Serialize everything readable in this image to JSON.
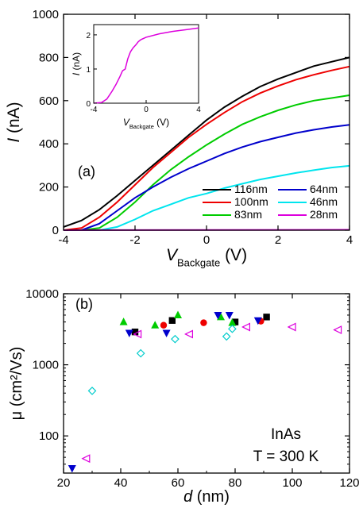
{
  "chart_data": [
    {
      "type": "line",
      "panel_label": "(a)",
      "xlabel_main": "V",
      "xlabel_sub": "Backgate",
      "xlabel_unit": " (V)",
      "ylabel_main": "I",
      "ylabel_unit": " (nA)",
      "xlim": [
        -4,
        4
      ],
      "ylim": [
        0,
        1000
      ],
      "xticks": [
        -4,
        -2,
        0,
        2,
        4
      ],
      "yticks": [
        0,
        200,
        400,
        600,
        800,
        1000
      ],
      "legend_placement": "bottom-right",
      "series": [
        {
          "name": "116nm",
          "color": "#000000",
          "x": [
            -4.0,
            -3.5,
            -3.0,
            -2.5,
            -2.0,
            -1.5,
            -1.0,
            -0.5,
            0.0,
            0.5,
            1.0,
            1.5,
            2.0,
            2.5,
            3.0,
            3.5,
            4.0
          ],
          "y": [
            15,
            45,
            95,
            160,
            230,
            300,
            370,
            440,
            510,
            570,
            620,
            665,
            700,
            730,
            760,
            780,
            800
          ]
        },
        {
          "name": "100nm",
          "color": "#ee0000",
          "x": [
            -4.0,
            -3.5,
            -3.0,
            -2.5,
            -2.0,
            -1.5,
            -1.0,
            -0.5,
            0.0,
            0.5,
            1.0,
            1.5,
            2.0,
            2.5,
            3.0,
            3.5,
            4.0
          ],
          "y": [
            0,
            10,
            60,
            130,
            210,
            290,
            360,
            430,
            490,
            545,
            595,
            635,
            668,
            697,
            720,
            740,
            758
          ]
        },
        {
          "name": "83nm",
          "color": "#00cc00",
          "x": [
            -4.0,
            -3.5,
            -3.0,
            -2.5,
            -2.0,
            -1.5,
            -1.0,
            -0.5,
            0.0,
            0.5,
            1.0,
            1.5,
            2.0,
            2.5,
            3.0,
            3.5,
            4.0
          ],
          "y": [
            0,
            0,
            10,
            60,
            130,
            210,
            280,
            340,
            395,
            445,
            490,
            525,
            555,
            580,
            600,
            612,
            625
          ]
        },
        {
          "name": "64nm",
          "color": "#0000cc",
          "x": [
            -4.0,
            -3.5,
            -3.0,
            -2.5,
            -2.0,
            -1.5,
            -1.0,
            -0.5,
            0.0,
            0.5,
            1.0,
            1.5,
            2.0,
            2.5,
            3.0,
            3.5,
            4.0
          ],
          "y": [
            0,
            0,
            30,
            90,
            150,
            200,
            245,
            285,
            320,
            355,
            385,
            410,
            430,
            450,
            465,
            478,
            488
          ]
        },
        {
          "name": "46nm",
          "color": "#00e5ee",
          "x": [
            -4.0,
            -3.5,
            -3.0,
            -2.5,
            -2.0,
            -1.5,
            -1.0,
            -0.5,
            0.0,
            0.5,
            1.0,
            1.5,
            2.0,
            2.5,
            3.0,
            3.5,
            4.0
          ],
          "y": [
            0,
            0,
            0,
            15,
            50,
            90,
            120,
            150,
            170,
            195,
            215,
            235,
            250,
            265,
            278,
            290,
            298
          ]
        },
        {
          "name": "28nm",
          "color": "#dd00dd",
          "x": [
            -4.0,
            4.0
          ],
          "y": [
            0,
            2
          ]
        }
      ]
    },
    {
      "type": "line",
      "panel": "inset",
      "xlabel_main": "V",
      "xlabel_sub": "Backgate",
      "xlabel_unit": " (V)",
      "ylabel_main": "I",
      "ylabel_unit": " (nA)",
      "xlim": [
        -4,
        4
      ],
      "ylim": [
        0,
        2.3
      ],
      "xticks": [
        -4,
        0,
        4
      ],
      "yticks": [
        0,
        1,
        2
      ],
      "series": [
        {
          "color": "#dd00dd",
          "x": [
            -4.0,
            -3.4,
            -3.0,
            -2.6,
            -2.3,
            -2.0,
            -1.8,
            -1.6,
            -1.4,
            -1.2,
            -1.0,
            -0.8,
            -0.6,
            -0.4,
            0.0,
            1.0,
            2.0,
            3.0,
            4.0
          ],
          "y": [
            0.0,
            0.02,
            0.12,
            0.35,
            0.55,
            0.78,
            0.95,
            1.0,
            1.3,
            1.5,
            1.62,
            1.7,
            1.8,
            1.86,
            1.93,
            2.03,
            2.1,
            2.15,
            2.2
          ]
        }
      ]
    },
    {
      "type": "scatter",
      "panel_label": "(b)",
      "xlabel_main": "d",
      "xlabel_unit": " (nm)",
      "ylabel_main": "μ",
      "ylabel_unit": " (cm²/Vs)",
      "xlim": [
        20,
        120
      ],
      "ylim": [
        30,
        10000
      ],
      "ylog": true,
      "xticks": [
        20,
        40,
        60,
        80,
        100,
        120
      ],
      "yticks": [
        100,
        1000,
        10000
      ],
      "annotation_lines": [
        "InAs",
        "T = 300 K"
      ],
      "series": [
        {
          "marker": "square",
          "color": "#000000",
          "x": [
            45,
            58,
            80,
            91
          ],
          "y": [
            2900,
            4200,
            4000,
            4700
          ]
        },
        {
          "marker": "circle",
          "color": "#ee0000",
          "x": [
            55,
            69,
            89
          ],
          "y": [
            3600,
            3900,
            4100
          ]
        },
        {
          "marker": "triangle-up",
          "color": "#00cc00",
          "x": [
            41,
            52,
            60,
            75,
            79
          ],
          "y": [
            4000,
            3600,
            5000,
            4700,
            3900
          ]
        },
        {
          "marker": "triangle-down",
          "color": "#0000cc",
          "x": [
            23,
            43,
            56,
            74,
            78,
            88
          ],
          "y": [
            35,
            2800,
            2800,
            5000,
            5000,
            4200
          ]
        },
        {
          "marker": "diamond-open",
          "color": "#00cccc",
          "x": [
            30,
            47,
            59,
            77,
            79
          ],
          "y": [
            430,
            1450,
            2300,
            2500,
            3200
          ]
        },
        {
          "marker": "triangle-left-open",
          "color": "#dd00dd",
          "x": [
            28,
            46,
            64,
            84,
            100,
            116
          ],
          "y": [
            48,
            2700,
            2700,
            3400,
            3400,
            3100
          ]
        }
      ]
    }
  ]
}
